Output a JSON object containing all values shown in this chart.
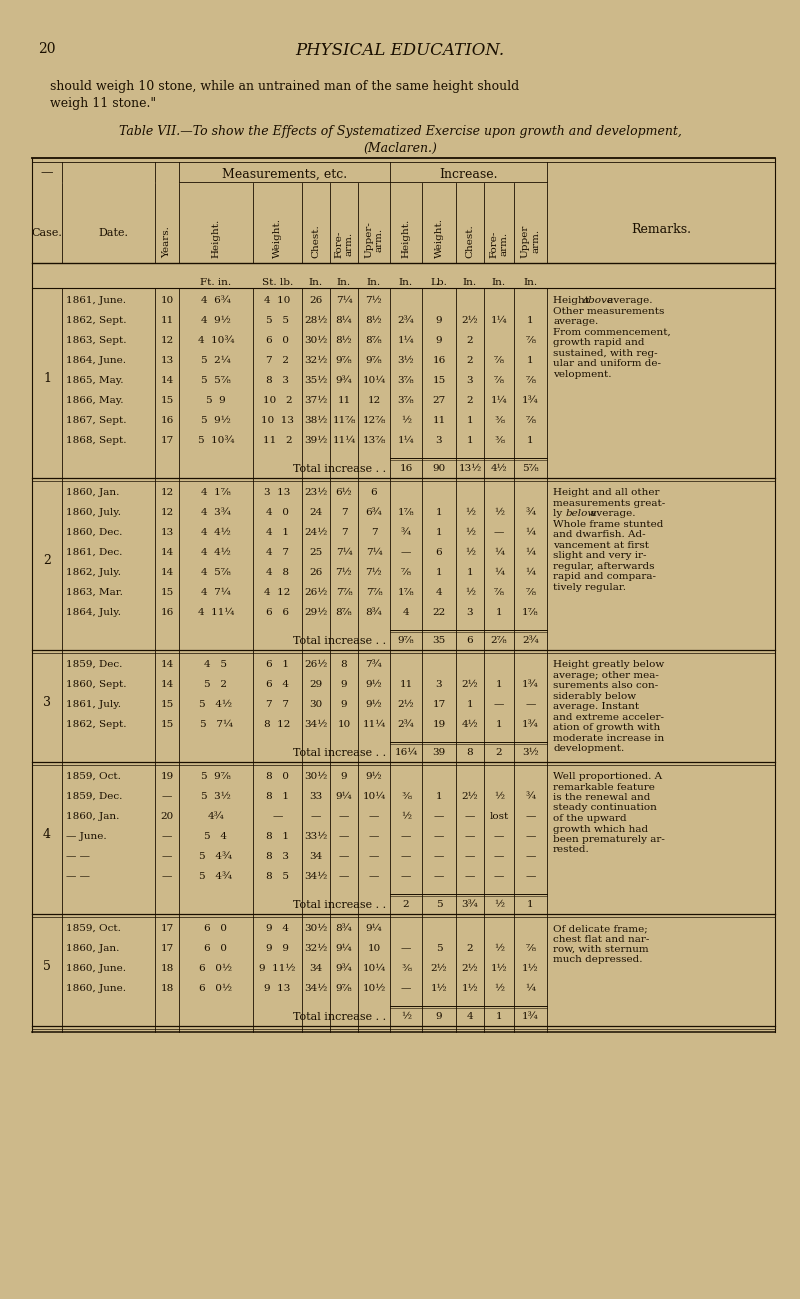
{
  "page_number": "20",
  "page_title": "PHYSICAL EDUCATION.",
  "bg_color": "#cdb98a",
  "text_color": "#1a0f00",
  "cases": [
    {
      "case_num": "1",
      "rows": [
        [
          "1861, June.",
          "10",
          "4  6¾",
          "4  10",
          "26",
          "7¼",
          "7½",
          "",
          "",
          "",
          "",
          "",
          ""
        ],
        [
          "1862, Sept.",
          "11",
          "4  9½",
          "5   5",
          "28½",
          "8¼",
          "8½",
          "2¾",
          "9",
          "2½",
          "1¼",
          "1",
          ""
        ],
        [
          "1863, Sept.",
          "12",
          "4  10¾",
          "6   0",
          "30½",
          "8½",
          "8⅞",
          "1¼",
          "9",
          "2",
          "",
          "⅞",
          ""
        ],
        [
          "1864, June.",
          "13",
          "5  2¼",
          "7   2",
          "32½",
          "9⅞",
          "9⅞",
          "3½",
          "16",
          "2",
          "⅞",
          "1",
          ""
        ],
        [
          "1865, May.",
          "14",
          "5  5⅞",
          "8   3",
          "35½",
          "9¾",
          "10¼",
          "3⅞",
          "15",
          "3",
          "⅞",
          "⅞",
          ""
        ],
        [
          "1866, May.",
          "15",
          "5  9",
          "10   2",
          "37½",
          "11",
          "12",
          "3⅞",
          "27",
          "2",
          "1¼",
          "1¾",
          ""
        ],
        [
          "1867, Sept.",
          "16",
          "5  9½",
          "10  13",
          "38½",
          "11⅞",
          "12⅞",
          "½",
          "11",
          "1",
          "⅜",
          "⅞",
          ""
        ],
        [
          "1868, Sept.",
          "17",
          "5  10¾",
          "11   2",
          "39½",
          "11¼",
          "13⅞",
          "1¼",
          "3",
          "1",
          "⅜",
          "1",
          ""
        ]
      ],
      "total_height": "16",
      "total_weight": "90",
      "total_chest": "13½",
      "total_forearm": "4½",
      "total_upperarm": "5⅞",
      "remark": "Height above average.\nOther measurements\naverage.\nFrom commencement,\ngrowth rapid and\nsustained, with reg-\nular and uniform de-\nvelopment."
    },
    {
      "case_num": "2",
      "rows": [
        [
          "1860, Jan.",
          "12",
          "4  1⅞",
          "3  13",
          "23½",
          "6½",
          "6",
          "",
          "",
          "",
          "",
          "",
          ""
        ],
        [
          "1860, July.",
          "12",
          "4  3¾",
          "4   0",
          "24",
          "7",
          "6¾",
          "1⅞",
          "1",
          "½",
          "½",
          "¾",
          ""
        ],
        [
          "1860, Dec.",
          "13",
          "4  4½",
          "4   1",
          "24½",
          "7",
          "7",
          "¾",
          "1",
          "½",
          "—",
          "¼",
          ""
        ],
        [
          "1861, Dec.",
          "14",
          "4  4½",
          "4   7",
          "25",
          "7¼",
          "7¼",
          "—",
          "6",
          "½",
          "¼",
          "¼",
          ""
        ],
        [
          "1862, July.",
          "14",
          "4  5⅞",
          "4   8",
          "26",
          "7½",
          "7½",
          "⅞",
          "1",
          "1",
          "¼",
          "¼",
          ""
        ],
        [
          "1863, Mar.",
          "15",
          "4  7¼",
          "4  12",
          "26½",
          "7⅞",
          "7⅞",
          "1⅞",
          "4",
          "½",
          "⅞",
          "⅞",
          ""
        ],
        [
          "1864, July.",
          "16",
          "4  11¼",
          "6   6",
          "29½",
          "8⅞",
          "8¾",
          "4",
          "22",
          "3",
          "1",
          "1⅞",
          ""
        ]
      ],
      "total_height": "9⅞",
      "total_weight": "35",
      "total_chest": "6",
      "total_forearm": "2⅞",
      "total_upperarm": "2¾",
      "remark": "Height and all other\nmeasurements great-\nly below average.\nWhole frame stunted\nand dwarfish. Ad-\nvancement at first\nslight and very ir-\nregular, afterwards\nrapid and compara-\ntively regular."
    },
    {
      "case_num": "3",
      "rows": [
        [
          "1859, Dec.",
          "14",
          "4   5",
          "6   1",
          "26½",
          "8",
          "7¾",
          "",
          "",
          "",
          "",
          "",
          ""
        ],
        [
          "1860, Sept.",
          "14",
          "5   2",
          "6   4",
          "29",
          "9",
          "9½",
          "11",
          "3",
          "2½",
          "1",
          "1¾",
          ""
        ],
        [
          "1861, July.",
          "15",
          "5   4½",
          "7   7",
          "30",
          "9",
          "9½",
          "2½",
          "17",
          "1",
          "—",
          "—",
          ""
        ],
        [
          "1862, Sept.",
          "15",
          "5   7¼",
          "8  12",
          "34½",
          "10",
          "11¼",
          "2¾",
          "19",
          "4½",
          "1",
          "1¾",
          ""
        ]
      ],
      "total_height": "16¼",
      "total_weight": "39",
      "total_chest": "8",
      "total_forearm": "2",
      "total_upperarm": "3½",
      "remark": "Height greatly below\naverage; other mea-\nsurements also con-\nsiderably below\naverage. Instant\nand extreme acceler-\nation of growth with\nmoderate increase in\ndevelopment."
    },
    {
      "case_num": "4",
      "rows": [
        [
          "1859, Oct.",
          "19",
          "5  9⅞",
          "8   0",
          "30½",
          "9",
          "9½",
          "",
          "",
          "",
          "",
          "",
          ""
        ],
        [
          "1859, Dec.",
          "—",
          "5  3½",
          "8   1",
          "33",
          "9¼",
          "10¼",
          "⅜",
          "1",
          "2½",
          "½",
          "¾",
          ""
        ],
        [
          "1860, Jan.",
          "20",
          "4¾",
          "—",
          "—",
          "—",
          "—",
          "½",
          "—",
          "—",
          "lost",
          "—",
          ""
        ],
        [
          "— June.",
          "—",
          "5   4",
          "8   1",
          "33½",
          "—",
          "—",
          "—",
          "—",
          "—",
          "—",
          "—",
          ""
        ],
        [
          "— —",
          "—",
          "5   4¾",
          "8   3",
          "34",
          "—",
          "—",
          "—",
          "—",
          "—",
          "—",
          "—",
          ""
        ],
        [
          "— —",
          "—",
          "5   4¾",
          "8   5",
          "34½",
          "—",
          "—",
          "—",
          "—",
          "—",
          "—",
          "—",
          ""
        ]
      ],
      "total_height": "2",
      "total_weight": "5",
      "total_chest": "3¾",
      "total_forearm": "½",
      "total_upperarm": "1",
      "remark": "Well proportioned. A\nremarkable feature\nis the renewal and\nsteady continuation\nof the upward\ngrowth which had\nbeen prematurely ar-\nrested."
    },
    {
      "case_num": "5",
      "rows": [
        [
          "1859, Oct.",
          "17",
          "6   0",
          "9   4",
          "30½",
          "8¾",
          "9¼",
          "",
          "",
          "",
          "",
          "",
          ""
        ],
        [
          "1860, Jan.",
          "17",
          "6   0",
          "9   9",
          "32½",
          "9¼",
          "10",
          "—",
          "5",
          "2",
          "½",
          "⅞",
          ""
        ],
        [
          "1860, June.",
          "18",
          "6   0½",
          "9  11½",
          "34",
          "9¾",
          "10¼",
          "⅜",
          "2½",
          "2½",
          "1½",
          "1½",
          ""
        ],
        [
          "1860, June.",
          "18",
          "6   0½",
          "9  13",
          "34½",
          "9⅞",
          "10½",
          "—",
          "1½",
          "1½",
          "½",
          "¼",
          ""
        ]
      ],
      "total_height": "½",
      "total_weight": "9",
      "total_chest": "4",
      "total_forearm": "1",
      "total_upperarm": "1¾",
      "remark": "Of delicate frame;\nchest flat and nar-\nrow, with sternum\nmuch depressed."
    }
  ]
}
